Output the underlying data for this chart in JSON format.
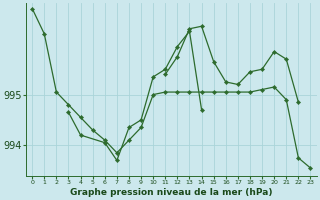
{
  "background_color": "#cce8ed",
  "grid_color": "#aad4d9",
  "line_color": "#2d6b2d",
  "marker_color": "#2d6b2d",
  "xlabel": "Graphe pression niveau de la mer (hPa)",
  "yticks": [
    994,
    995
  ],
  "ytick_labels": [
    "994",
    "995"
  ],
  "ylim": [
    993.4,
    996.8
  ],
  "xlim": [
    -0.5,
    23.5
  ],
  "xticks": [
    0,
    1,
    2,
    3,
    4,
    5,
    6,
    7,
    8,
    9,
    10,
    11,
    12,
    13,
    14,
    15,
    16,
    17,
    18,
    19,
    20,
    21,
    22,
    23
  ],
  "series": [
    {
      "x": [
        0,
        1,
        2,
        3,
        4,
        5,
        6,
        7,
        8,
        9,
        10,
        11,
        12,
        13,
        14,
        15,
        16,
        17,
        18,
        19,
        20,
        21,
        22,
        23
      ],
      "y": [
        996.7,
        996.2,
        995.05,
        994.8,
        994.55,
        994.3,
        994.1,
        993.85,
        994.1,
        994.35,
        995.0,
        995.05,
        995.05,
        995.05,
        995.05,
        995.05,
        995.05,
        995.05,
        995.05,
        995.1,
        995.15,
        994.9,
        993.75,
        993.55
      ]
    },
    {
      "x": [
        3,
        4,
        6,
        7,
        8,
        9,
        10,
        11,
        12,
        13,
        14
      ],
      "y": [
        994.65,
        994.2,
        994.05,
        993.7,
        994.35,
        994.5,
        995.35,
        995.5,
        995.95,
        996.25,
        994.7
      ]
    },
    {
      "x": [
        11,
        12,
        13,
        14,
        15,
        16,
        17,
        18,
        19,
        20,
        21,
        22
      ],
      "y": [
        995.4,
        995.75,
        996.3,
        996.35,
        995.65,
        995.25,
        995.2,
        995.45,
        995.5,
        995.85,
        995.7,
        994.85
      ]
    }
  ]
}
